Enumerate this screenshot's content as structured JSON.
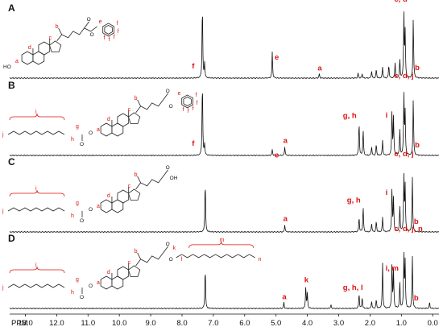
{
  "chart_data": {
    "type": "line",
    "axis": {
      "unit_label": "PPM",
      "xlim": [
        13.5,
        -0.2
      ],
      "reversed": true,
      "ticks": [
        13.0,
        12.0,
        11.0,
        10.0,
        9.0,
        8.0,
        7.0,
        6.0,
        5.0,
        4.0,
        3.0,
        2.0,
        1.0,
        0.0
      ],
      "tick_labels": [
        "13.0",
        "12.0",
        "11.0",
        "10.0",
        "9.0",
        "8.0",
        "7.0",
        "6.0",
        "5.0",
        "4.0",
        "3.0",
        "2.0",
        "1.0",
        "0.0"
      ]
    },
    "panels": [
      {
        "letter": "A",
        "structure_labels": [
          "a",
          "b",
          "c",
          "d",
          "e",
          "f",
          "f",
          "f",
          "f",
          "f",
          "HO"
        ],
        "peaks": [
          {
            "ppm": 7.35,
            "height": 1.0,
            "label": "f"
          },
          {
            "ppm": 7.28,
            "height": 0.2
          },
          {
            "ppm": 5.12,
            "height": 0.35,
            "label": "e"
          },
          {
            "ppm": 3.62,
            "height": 0.06,
            "label": "a"
          },
          {
            "ppm": 2.38,
            "height": 0.07
          },
          {
            "ppm": 2.25,
            "height": 0.06
          },
          {
            "ppm": 1.95,
            "height": 0.1
          },
          {
            "ppm": 1.8,
            "height": 0.12
          },
          {
            "ppm": 1.6,
            "height": 0.15
          },
          {
            "ppm": 1.4,
            "height": 0.18
          },
          {
            "ppm": 1.2,
            "height": 0.2
          },
          {
            "ppm": 1.05,
            "height": 0.25
          },
          {
            "ppm": 0.92,
            "height": 0.85,
            "label": "c, d"
          },
          {
            "ppm": 0.88,
            "height": 0.6
          },
          {
            "ppm": 0.62,
            "height": 0.8,
            "label": "b"
          }
        ]
      },
      {
        "letter": "B",
        "structure_labels": [
          "a",
          "b",
          "c",
          "d",
          "e",
          "f",
          "f",
          "f",
          "f",
          "f",
          "g",
          "h",
          "i",
          "j"
        ],
        "peaks": [
          {
            "ppm": 7.35,
            "height": 1.0,
            "label": "f"
          },
          {
            "ppm": 7.28,
            "height": 0.15
          },
          {
            "ppm": 5.12,
            "height": 0.08,
            "label": "e"
          },
          {
            "ppm": 4.72,
            "height": 0.12,
            "label": "a"
          },
          {
            "ppm": 2.35,
            "height": 0.45,
            "label": "g, h"
          },
          {
            "ppm": 2.22,
            "height": 0.35
          },
          {
            "ppm": 1.95,
            "height": 0.12
          },
          {
            "ppm": 1.8,
            "height": 0.15
          },
          {
            "ppm": 1.6,
            "height": 0.2
          },
          {
            "ppm": 1.3,
            "height": 0.6,
            "label": "i"
          },
          {
            "ppm": 1.25,
            "height": 0.5
          },
          {
            "ppm": 1.05,
            "height": 0.35
          },
          {
            "ppm": 0.92,
            "height": 0.8,
            "label": "c, d, j"
          },
          {
            "ppm": 0.88,
            "height": 0.55
          },
          {
            "ppm": 0.62,
            "height": 0.75,
            "label": "b"
          }
        ]
      },
      {
        "letter": "C",
        "structure_labels": [
          "a",
          "b",
          "c",
          "d",
          "g",
          "h",
          "i",
          "j",
          "OH"
        ],
        "peaks": [
          {
            "ppm": 7.26,
            "height": 0.7
          },
          {
            "ppm": 4.72,
            "height": 0.1,
            "label": "a"
          },
          {
            "ppm": 2.35,
            "height": 0.2
          },
          {
            "ppm": 2.22,
            "height": 0.35,
            "label": "g, h"
          },
          {
            "ppm": 1.95,
            "height": 0.12
          },
          {
            "ppm": 1.8,
            "height": 0.15
          },
          {
            "ppm": 1.6,
            "height": 0.2
          },
          {
            "ppm": 1.3,
            "height": 0.6,
            "label": "i"
          },
          {
            "ppm": 1.25,
            "height": 0.45
          },
          {
            "ppm": 1.05,
            "height": 0.35
          },
          {
            "ppm": 0.92,
            "height": 0.75,
            "label": "c, d, j"
          },
          {
            "ppm": 0.88,
            "height": 0.6
          },
          {
            "ppm": 0.65,
            "height": 0.75,
            "label": "b"
          }
        ]
      },
      {
        "letter": "D",
        "structure_labels": [
          "a",
          "b",
          "c",
          "d",
          "g",
          "h",
          "i",
          "j",
          "k",
          "l",
          "m",
          "n"
        ],
        "peaks": [
          {
            "ppm": 7.26,
            "height": 0.55
          },
          {
            "ppm": 4.75,
            "height": 0.08,
            "label": "a"
          },
          {
            "ppm": 4.05,
            "height": 0.3,
            "label": "k"
          },
          {
            "ppm": 4.0,
            "height": 0.2
          },
          {
            "ppm": 3.25,
            "height": 0.05
          },
          {
            "ppm": 2.35,
            "height": 0.2,
            "label": "g, h, l"
          },
          {
            "ppm": 2.25,
            "height": 0.15
          },
          {
            "ppm": 1.95,
            "height": 0.1
          },
          {
            "ppm": 1.8,
            "height": 0.12
          },
          {
            "ppm": 1.6,
            "height": 0.6
          },
          {
            "ppm": 1.3,
            "height": 0.6,
            "label": "i, m"
          },
          {
            "ppm": 1.25,
            "height": 0.5
          },
          {
            "ppm": 1.05,
            "height": 0.35
          },
          {
            "ppm": 0.92,
            "height": 0.7,
            "label": "c, d, j, n"
          },
          {
            "ppm": 0.88,
            "height": 0.6
          },
          {
            "ppm": 0.65,
            "height": 0.7,
            "label": "b"
          },
          {
            "ppm": 0.1,
            "height": 0.08
          }
        ]
      }
    ]
  }
}
